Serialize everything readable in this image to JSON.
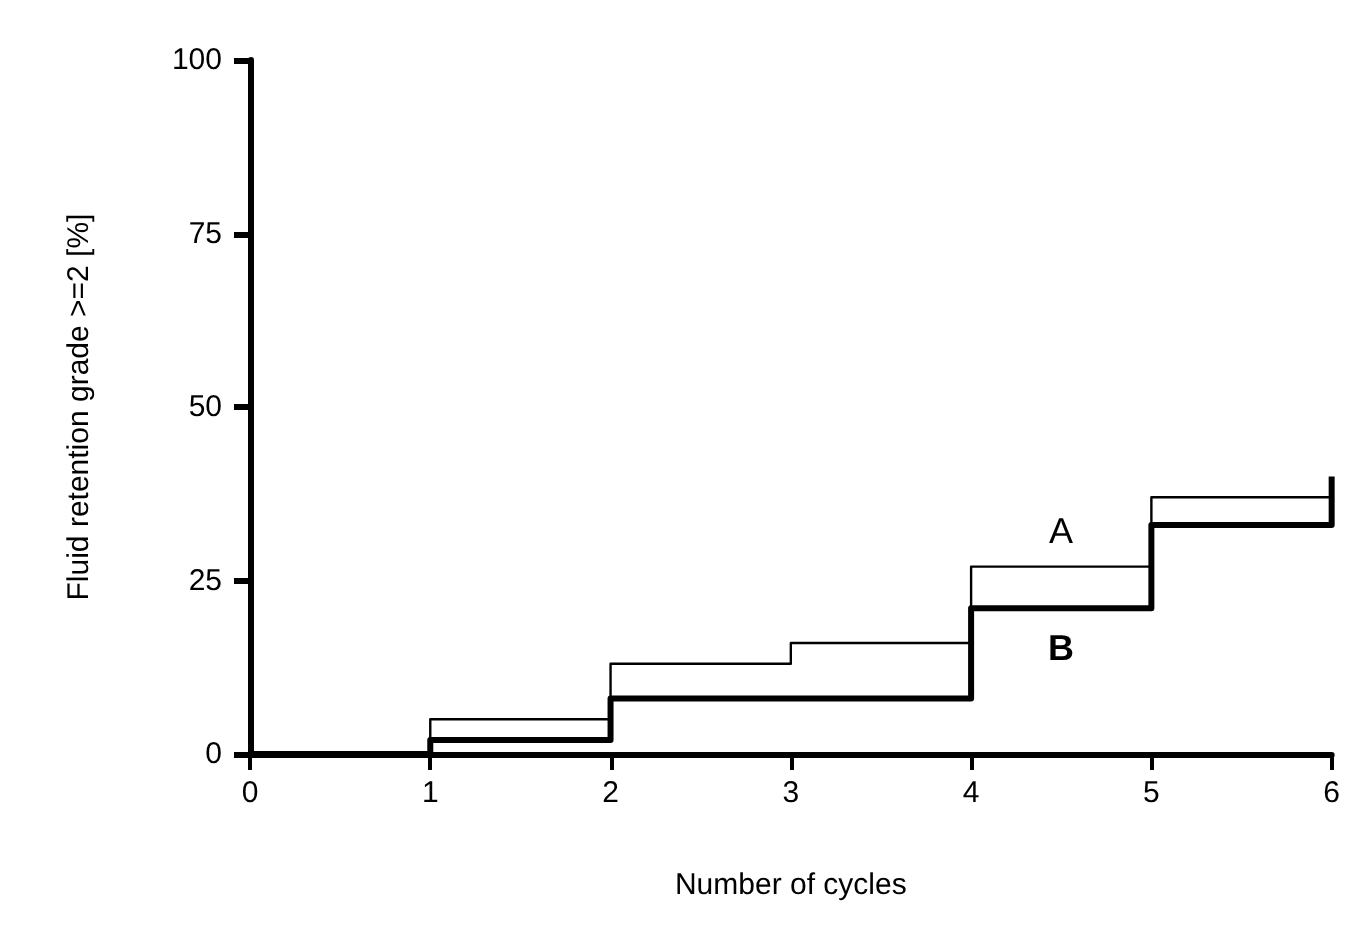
{
  "chart_data": {
    "type": "step",
    "xlabel": "Number of cycles",
    "ylabel": "Fluid retention grade >=2 [%]",
    "x": [
      0,
      1,
      2,
      3,
      4,
      5,
      6
    ],
    "series": [
      {
        "name": "A",
        "color": "#000000",
        "values": [
          0,
          5,
          13,
          16,
          27,
          37,
          37
        ]
      },
      {
        "name": "B",
        "color": "#000000",
        "values": [
          0,
          2,
          8,
          8,
          21,
          33,
          40
        ]
      }
    ],
    "xlim": [
      0,
      6
    ],
    "xticks": [
      0,
      1,
      2,
      3,
      4,
      5,
      6
    ],
    "ylim": [
      0,
      100
    ],
    "yticks": [
      0,
      25,
      50,
      75,
      100
    ],
    "grid": false,
    "legend": false,
    "marker": "none",
    "line_style": "solid"
  }
}
